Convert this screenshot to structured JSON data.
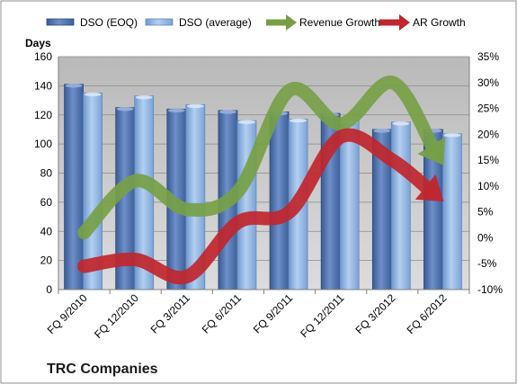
{
  "company": "TRC Companies",
  "chart_data": {
    "type": "bar",
    "categories": [
      "FQ 9/2010",
      "FQ 12/2010",
      "FQ 3/2011",
      "FQ 6/2011",
      "FQ 9/2011",
      "FQ 12/2011",
      "FQ 3/2012",
      "FQ 6/2012"
    ],
    "series": [
      {
        "name": "DSO (EOQ)",
        "type": "bar",
        "axis": "left",
        "color": "#4f6fa8",
        "values": [
          141,
          125,
          124,
          123,
          122,
          121,
          110,
          110
        ]
      },
      {
        "name": "DSO (average)",
        "type": "bar",
        "axis": "left",
        "color": "#8eb4e3",
        "values": [
          135,
          133,
          127,
          116,
          117,
          116,
          115,
          107
        ]
      },
      {
        "name": "Revenue Growth",
        "type": "arrow-line",
        "axis": "right",
        "color": "#77a046",
        "values": [
          0.01,
          0.11,
          0.055,
          0.09,
          0.285,
          0.22,
          0.3,
          0.14
        ]
      },
      {
        "name": "AR Growth",
        "type": "arrow-line",
        "axis": "right",
        "color": "#c0262d",
        "values": [
          -0.055,
          -0.042,
          -0.075,
          0.03,
          0.05,
          0.195,
          0.15,
          0.07
        ]
      }
    ],
    "ylabel": "Days",
    "ylim": [
      0,
      160
    ],
    "yticks": [
      "0",
      "20",
      "40",
      "60",
      "80",
      "100",
      "120",
      "140",
      "160"
    ],
    "y2lim": [
      -0.1,
      0.35
    ],
    "y2ticks": [
      "-10%",
      "-5%",
      "0%",
      "5%",
      "10%",
      "15%",
      "20%",
      "25%",
      "30%",
      "35%"
    ],
    "grid": true,
    "legend": "top"
  }
}
